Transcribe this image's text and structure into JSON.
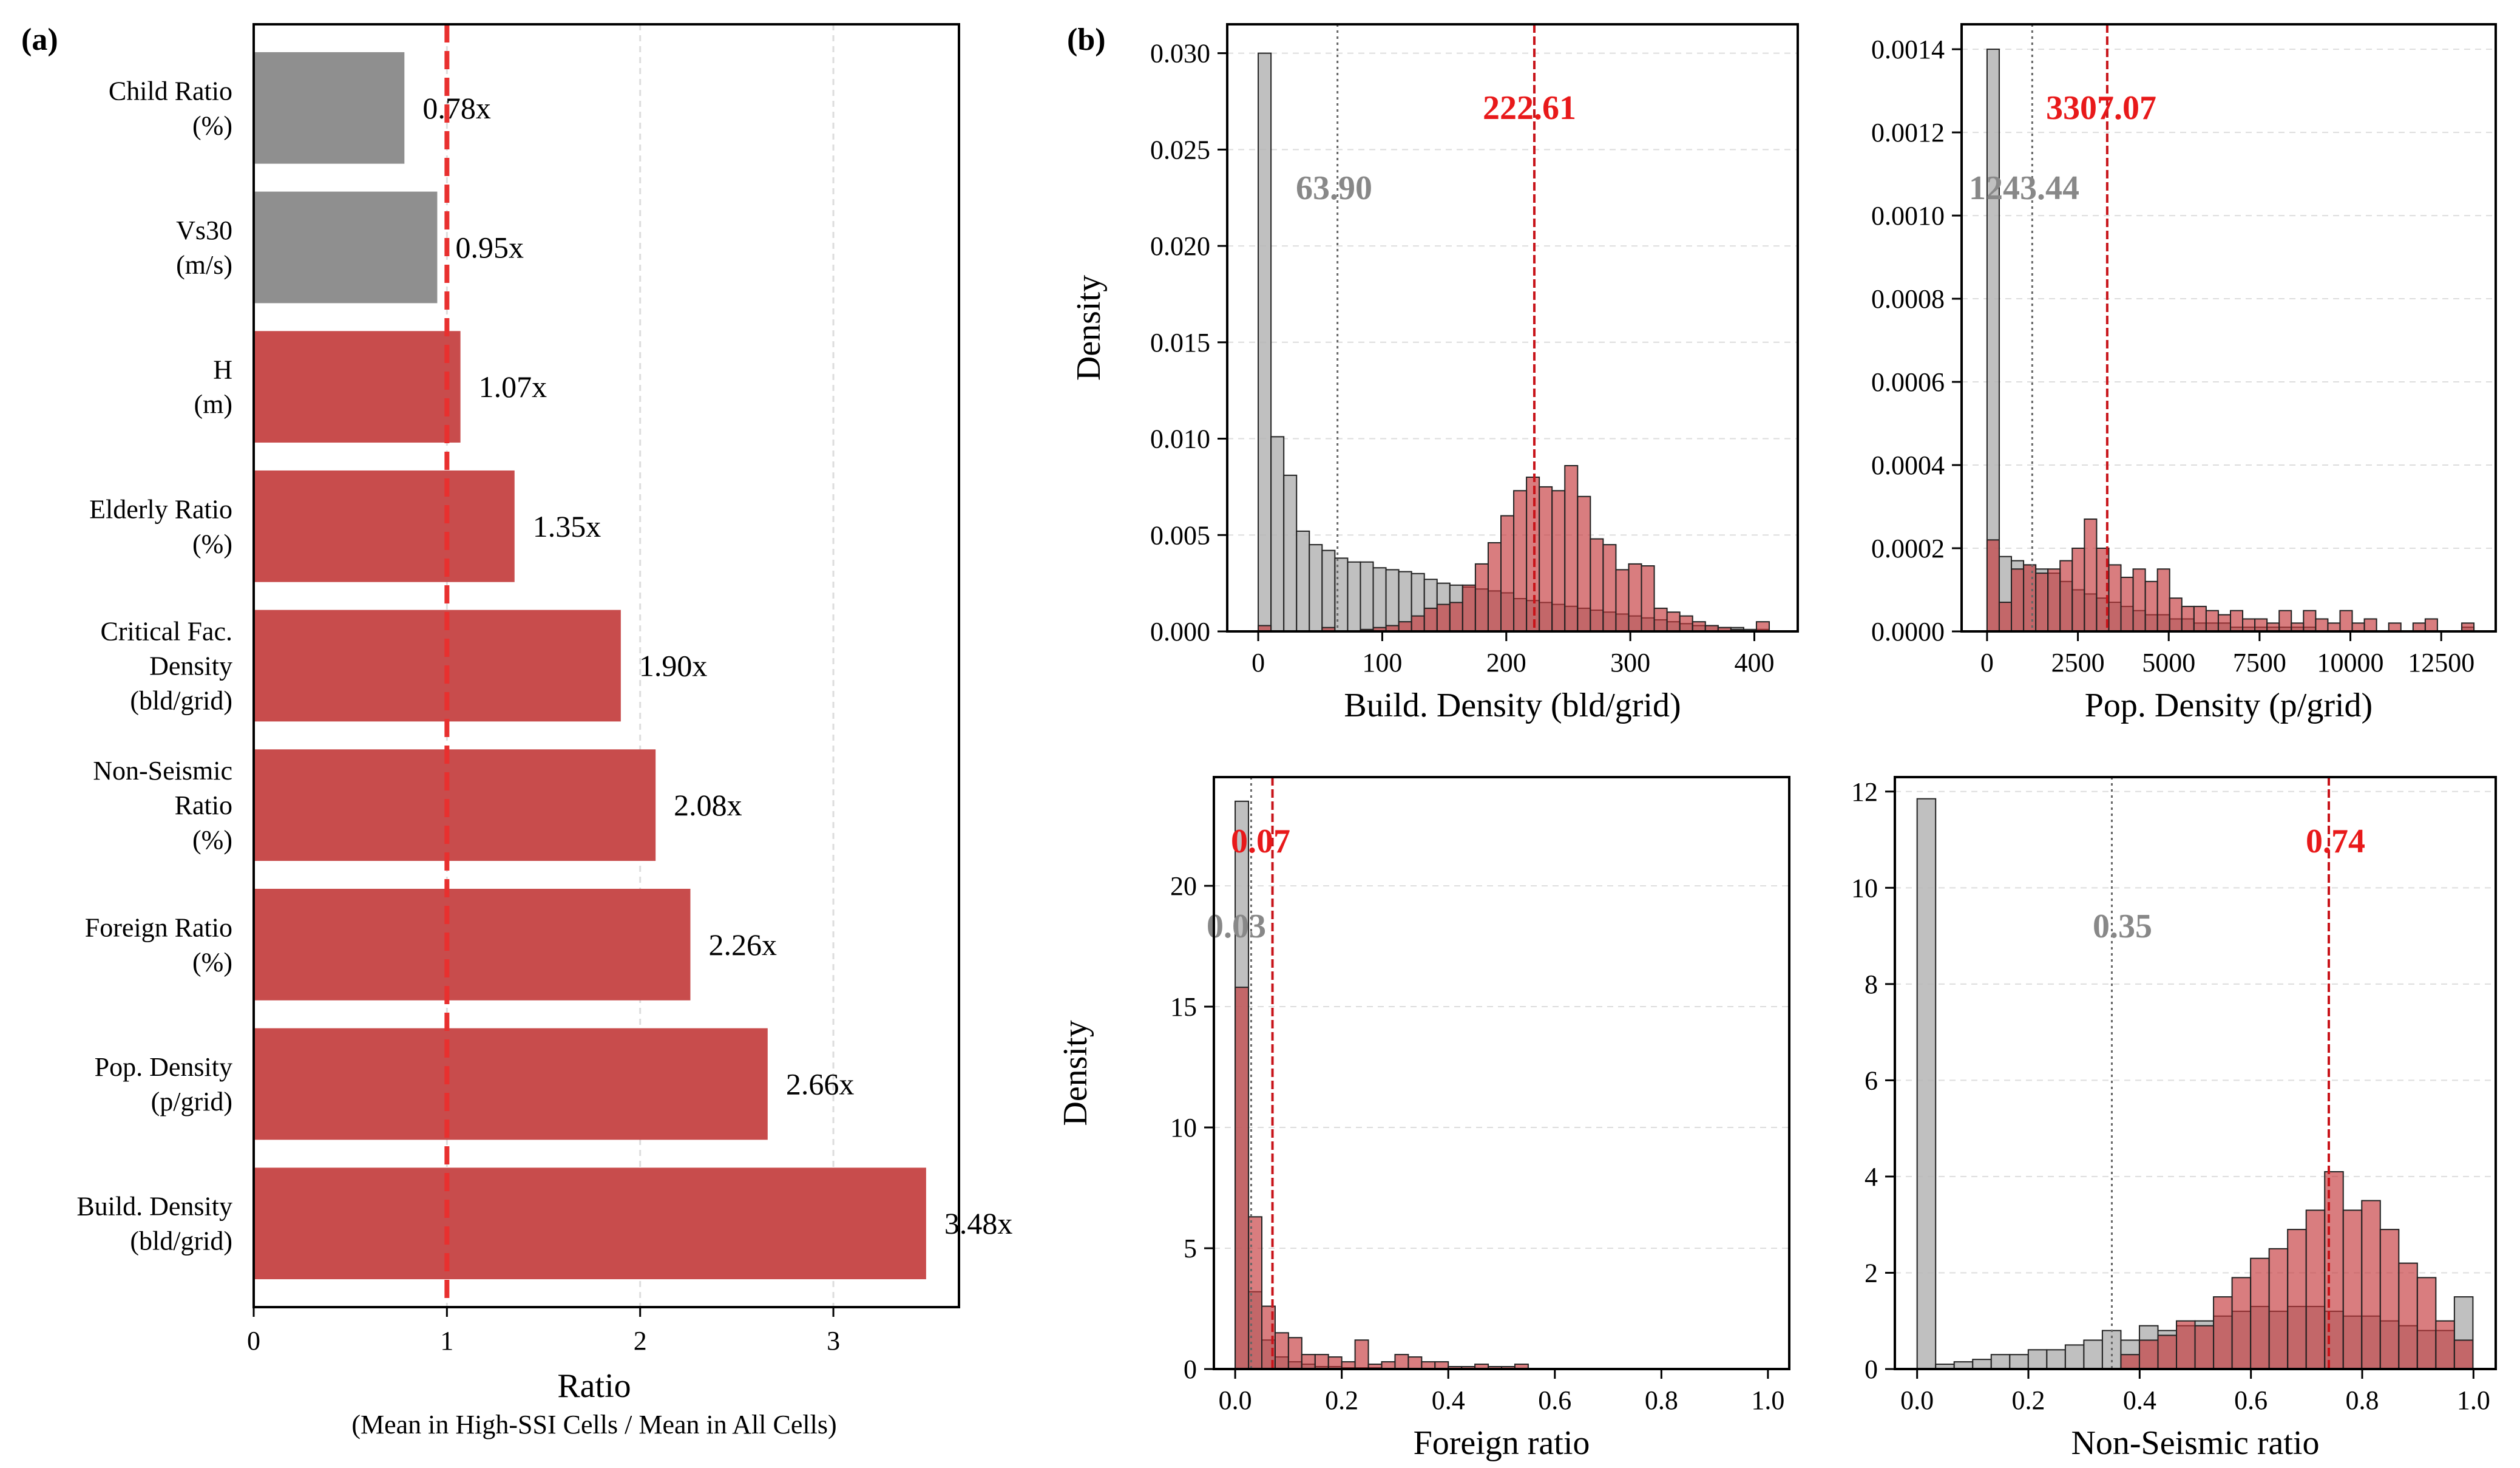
{
  "panels": {
    "a": "(a)",
    "b": "(b)"
  },
  "colors": {
    "gray_bar": "#8f8f8f",
    "red_bar": "#c84c4c",
    "ref_line": "#e8302f",
    "hist_gray": "#b5b5b5",
    "hist_red": "#c5383b",
    "mean_gray_text": "#888888",
    "mean_red_text": "#e8191a",
    "grid": "#dddddd"
  },
  "chart_data": [
    {
      "id": "a",
      "type": "bar",
      "orientation": "horizontal",
      "categories": [
        [
          "Child Ratio",
          "(%)"
        ],
        [
          "Vs30",
          "(m/s)"
        ],
        [
          "H",
          "(m)"
        ],
        [
          "Elderly Ratio",
          "(%)"
        ],
        [
          "Critical Fac.",
          "Density",
          "(bld/grid)"
        ],
        [
          "Non-Seismic",
          "Ratio",
          "(%)"
        ],
        [
          "Foreign Ratio",
          "(%)"
        ],
        [
          "Pop. Density",
          "(p/grid)"
        ],
        [
          "Build. Density",
          "(bld/grid)"
        ]
      ],
      "values": [
        0.78,
        0.95,
        1.07,
        1.35,
        1.9,
        2.08,
        2.26,
        2.66,
        3.48
      ],
      "value_labels": [
        "0.78x",
        "0.95x",
        "1.07x",
        "1.35x",
        "1.90x",
        "2.08x",
        "2.26x",
        "2.66x",
        "3.48x"
      ],
      "bar_colors": [
        "gray",
        "gray",
        "red",
        "red",
        "red",
        "red",
        "red",
        "red",
        "red"
      ],
      "reference_line": 1,
      "xlabel": "Ratio",
      "xlabel_sub": "(Mean in High-SSI Cells / Mean in All Cells)",
      "xlim": [
        0,
        3.65
      ],
      "xticks": [
        0,
        1,
        2,
        3
      ],
      "grid": "x"
    },
    {
      "id": "b1",
      "type": "histogram",
      "xlabel": "Build. Density (bld/grid)",
      "ylabel": "Density",
      "xlim": [
        -25,
        435
      ],
      "ylim": [
        0,
        0.0315
      ],
      "xticks": [
        0,
        100,
        200,
        300,
        400
      ],
      "yticks": [
        0.0,
        0.005,
        0.01,
        0.015,
        0.02,
        0.025,
        0.03
      ],
      "ytick_labels": [
        "0.000",
        "0.005",
        "0.010",
        "0.015",
        "0.020",
        "0.025",
        "0.030"
      ],
      "series": [
        {
          "color": "gray",
          "bins_start": 0,
          "bin_width": 10.3,
          "heights": [
            0.03,
            0.0101,
            0.0081,
            0.0052,
            0.0045,
            0.0042,
            0.0038,
            0.0036,
            0.0036,
            0.0033,
            0.0032,
            0.0031,
            0.003,
            0.0027,
            0.0025,
            0.0024,
            0.0023,
            0.0022,
            0.0021,
            0.002,
            0.0017,
            0.0016,
            0.0015,
            0.0014,
            0.0013,
            0.0012,
            0.0011,
            0.001,
            0.0009,
            0.0008,
            0.0007,
            0.0006,
            0.0005,
            0.0004,
            0.0003,
            0.0003,
            0.0002,
            0.0002,
            0.0001,
            0.0001
          ]
        },
        {
          "color": "red",
          "bins_start": 0,
          "bin_width": 10.3,
          "heights": [
            0.0003,
            0,
            0,
            0,
            0,
            0.0002,
            0,
            0,
            0.0001,
            0.0002,
            0.0003,
            0.0005,
            0.0008,
            0.0012,
            0.0014,
            0.0015,
            0.0024,
            0.0035,
            0.0046,
            0.006,
            0.0073,
            0.008,
            0.0075,
            0.0073,
            0.0086,
            0.007,
            0.0048,
            0.0045,
            0.0032,
            0.0035,
            0.0034,
            0.0012,
            0.001,
            0.0008,
            0.0005,
            0.0003,
            0.0002,
            0.0001,
            0,
            0.0005
          ]
        }
      ],
      "means": [
        {
          "series": "gray",
          "value": 63.9,
          "label": "63.90"
        },
        {
          "series": "red",
          "value": 222.61,
          "label": "222.61"
        }
      ]
    },
    {
      "id": "b2",
      "type": "histogram",
      "xlabel": "Pop. Density (p/grid)",
      "ylabel": "",
      "xlim": [
        -700,
        14000
      ],
      "ylim": [
        0,
        0.00146
      ],
      "xticks": [
        0,
        2500,
        5000,
        7500,
        10000,
        12500
      ],
      "yticks": [
        0,
        0.0002,
        0.0004,
        0.0006,
        0.0008,
        0.001,
        0.0012,
        0.0014
      ],
      "ytick_labels": [
        "0.0000",
        "0.0002",
        "0.0004",
        "0.0006",
        "0.0008",
        "0.0010",
        "0.0012",
        "0.0014"
      ],
      "series": [
        {
          "color": "gray",
          "bins_start": 0,
          "bin_width": 335,
          "heights": [
            0.0014,
            0.00018,
            0.00017,
            0.00016,
            0.00015,
            0.00014,
            0.00012,
            0.0001,
            9e-05,
            8e-05,
            7e-05,
            6e-05,
            5e-05,
            4e-05,
            4e-05,
            3e-05,
            3e-05,
            2e-05,
            2e-05,
            2e-05,
            1e-05,
            1e-05,
            1e-05,
            1e-05,
            1e-05,
            1e-05,
            1e-05,
            0,
            0,
            0,
            0,
            0,
            0,
            0,
            0,
            0,
            0,
            0,
            0,
            1e-05
          ]
        },
        {
          "color": "red",
          "bins_start": 0,
          "bin_width": 335,
          "heights": [
            0.00022,
            7e-05,
            0.00015,
            0.00016,
            0.00014,
            0.00015,
            0.00017,
            0.0002,
            0.00027,
            0.0002,
            0.00016,
            0.00013,
            0.00015,
            0.00012,
            0.00015,
            8e-05,
            6e-05,
            6e-05,
            5e-05,
            4e-05,
            5e-05,
            3e-05,
            3e-05,
            2e-05,
            5e-05,
            2e-05,
            5e-05,
            3e-05,
            2e-05,
            5e-05,
            2e-05,
            3e-05,
            0,
            2e-05,
            0,
            2e-05,
            3e-05,
            0,
            0,
            2e-05
          ]
        }
      ],
      "means": [
        {
          "series": "gray",
          "value": 1243.44,
          "label": "1243.44"
        },
        {
          "series": "red",
          "value": 3307.07,
          "label": "3307.07"
        }
      ]
    },
    {
      "id": "b3",
      "type": "histogram",
      "xlabel": "Foreign ratio",
      "ylabel": "Density",
      "xlim": [
        -0.04,
        1.04
      ],
      "ylim": [
        0,
        24.5
      ],
      "xticks": [
        0.0,
        0.2,
        0.4,
        0.6,
        0.8,
        1.0
      ],
      "yticks": [
        0,
        5,
        10,
        15,
        20
      ],
      "series": [
        {
          "color": "gray",
          "bins_start": 0,
          "bin_width": 0.025,
          "heights": [
            23.5,
            3.2,
            1.2,
            0.5,
            0.3,
            0.2,
            0.1,
            0.1,
            0.05,
            0.05,
            0.05
          ]
        },
        {
          "color": "red",
          "bins_start": 0,
          "bin_width": 0.025,
          "heights": [
            15.8,
            6.3,
            2.6,
            1.5,
            1.3,
            0.6,
            0.6,
            0.5,
            0.3,
            1.2,
            0.2,
            0.3,
            0.6,
            0.5,
            0.3,
            0.3,
            0.1,
            0.1,
            0.2,
            0.1,
            0.1,
            0.2
          ]
        }
      ],
      "means": [
        {
          "series": "gray",
          "value": 0.03,
          "label": "0.03"
        },
        {
          "series": "red",
          "value": 0.07,
          "label": "0.07"
        }
      ]
    },
    {
      "id": "b4",
      "type": "histogram",
      "xlabel": "Non-Seismic ratio",
      "ylabel": "",
      "xlim": [
        -0.04,
        1.04
      ],
      "ylim": [
        0,
        12.3
      ],
      "xticks": [
        0.0,
        0.2,
        0.4,
        0.6,
        0.8,
        1.0
      ],
      "yticks": [
        0,
        2,
        4,
        6,
        8,
        10,
        12
      ],
      "series": [
        {
          "color": "gray",
          "bins_start": 0,
          "bin_width": 0.0333,
          "heights": [
            11.85,
            0.1,
            0.15,
            0.2,
            0.3,
            0.3,
            0.4,
            0.4,
            0.5,
            0.6,
            0.8,
            0.6,
            0.9,
            0.8,
            0.9,
            1.0,
            1.1,
            1.2,
            1.3,
            1.2,
            1.3,
            1.3,
            1.2,
            1.1,
            1.1,
            1.0,
            0.9,
            0.8,
            0.8,
            1.5
          ]
        },
        {
          "color": "red",
          "bins_start": 0,
          "bin_width": 0.0333,
          "heights": [
            0,
            0,
            0,
            0,
            0,
            0,
            0,
            0,
            0,
            0,
            0,
            0.3,
            0.6,
            0.7,
            1.0,
            0.9,
            1.5,
            1.9,
            2.3,
            2.5,
            2.9,
            3.3,
            4.1,
            3.3,
            3.5,
            2.9,
            2.2,
            1.9,
            1.0,
            0.6
          ]
        }
      ],
      "means": [
        {
          "series": "gray",
          "value": 0.35,
          "label": "0.35"
        },
        {
          "series": "red",
          "value": 0.74,
          "label": "0.74"
        }
      ]
    }
  ]
}
